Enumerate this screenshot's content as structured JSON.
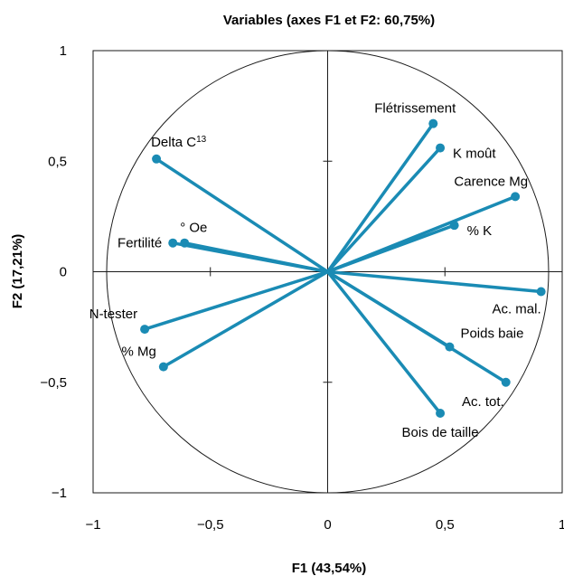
{
  "chart_data": {
    "type": "scatter",
    "subtype": "pca-correlation-circle",
    "title": "Variables (axes F1 et F2: 60,75%)",
    "xlabel": "F1 (43,54%)",
    "ylabel": "F2 (17,21%)",
    "xlim": [
      -1,
      1
    ],
    "ylim": [
      -1,
      1
    ],
    "xticks": [
      -1,
      -0.5,
      0,
      0.5,
      1
    ],
    "yticks": [
      -1,
      -0.5,
      0,
      0.5,
      1
    ],
    "xtick_labels": [
      "−1",
      "−0,5",
      "0",
      "0,5",
      "1"
    ],
    "ytick_labels": [
      "−1",
      "−0,5",
      "0",
      "0,5",
      "1"
    ],
    "grid": false,
    "correlation_circle": true,
    "series_color": "#1a8bb4",
    "points": [
      {
        "label": "Flétrissement",
        "x": 0.45,
        "y": 0.67
      },
      {
        "label": "K moût",
        "x": 0.48,
        "y": 0.56
      },
      {
        "label": "Carence Mg",
        "x": 0.8,
        "y": 0.34
      },
      {
        "label": "% K",
        "x": 0.54,
        "y": 0.21
      },
      {
        "label": "Delta C¹³",
        "x": -0.73,
        "y": 0.51
      },
      {
        "label": "° Oe",
        "x": -0.61,
        "y": 0.13
      },
      {
        "label": "Fertilité",
        "x": -0.66,
        "y": 0.13
      },
      {
        "label": "Ac. mal.",
        "x": 0.91,
        "y": -0.09
      },
      {
        "label": "Poids baie",
        "x": 0.52,
        "y": -0.34
      },
      {
        "label": "Ac. tot.",
        "x": 0.76,
        "y": -0.5
      },
      {
        "label": "Bois de taille",
        "x": 0.48,
        "y": -0.64
      },
      {
        "label": "N-tester",
        "x": -0.78,
        "y": -0.26
      },
      {
        "label": "% Mg",
        "x": -0.7,
        "y": -0.43
      }
    ]
  }
}
